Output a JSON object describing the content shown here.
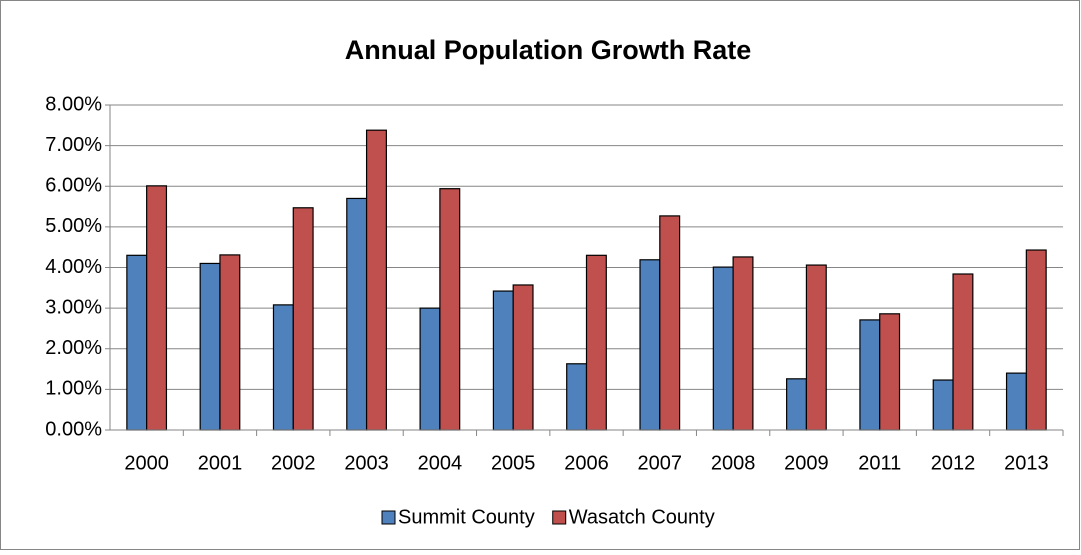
{
  "chart_data": {
    "type": "bar",
    "title": "Annual Population Growth Rate",
    "categories": [
      "2000",
      "2001",
      "2002",
      "2003",
      "2004",
      "2005",
      "2006",
      "2007",
      "2008",
      "2009",
      "2011",
      "2012",
      "2013"
    ],
    "series": [
      {
        "name": "Summit County",
        "color": "#4f81bd",
        "values": [
          4.3,
          4.1,
          3.08,
          5.7,
          3.0,
          3.42,
          1.63,
          4.19,
          4.01,
          1.26,
          2.71,
          1.23,
          1.4
        ]
      },
      {
        "name": "Wasatch County",
        "color": "#c0504d",
        "values": [
          6.01,
          4.31,
          5.47,
          7.38,
          5.94,
          3.57,
          4.3,
          5.27,
          4.26,
          4.06,
          2.86,
          3.84,
          4.43
        ]
      }
    ],
    "ylim": [
      0,
      8
    ],
    "yticks": [
      {
        "value": 0,
        "label": "0.00%"
      },
      {
        "value": 1,
        "label": "1.00%"
      },
      {
        "value": 2,
        "label": "2.00%"
      },
      {
        "value": 3,
        "label": "3.00%"
      },
      {
        "value": 4,
        "label": "4.00%"
      },
      {
        "value": 5,
        "label": "5.00%"
      },
      {
        "value": 6,
        "label": "6.00%"
      },
      {
        "value": 7,
        "label": "7.00%"
      },
      {
        "value": 8,
        "label": "8.00%"
      }
    ],
    "grid": true,
    "legend": "bottom"
  }
}
